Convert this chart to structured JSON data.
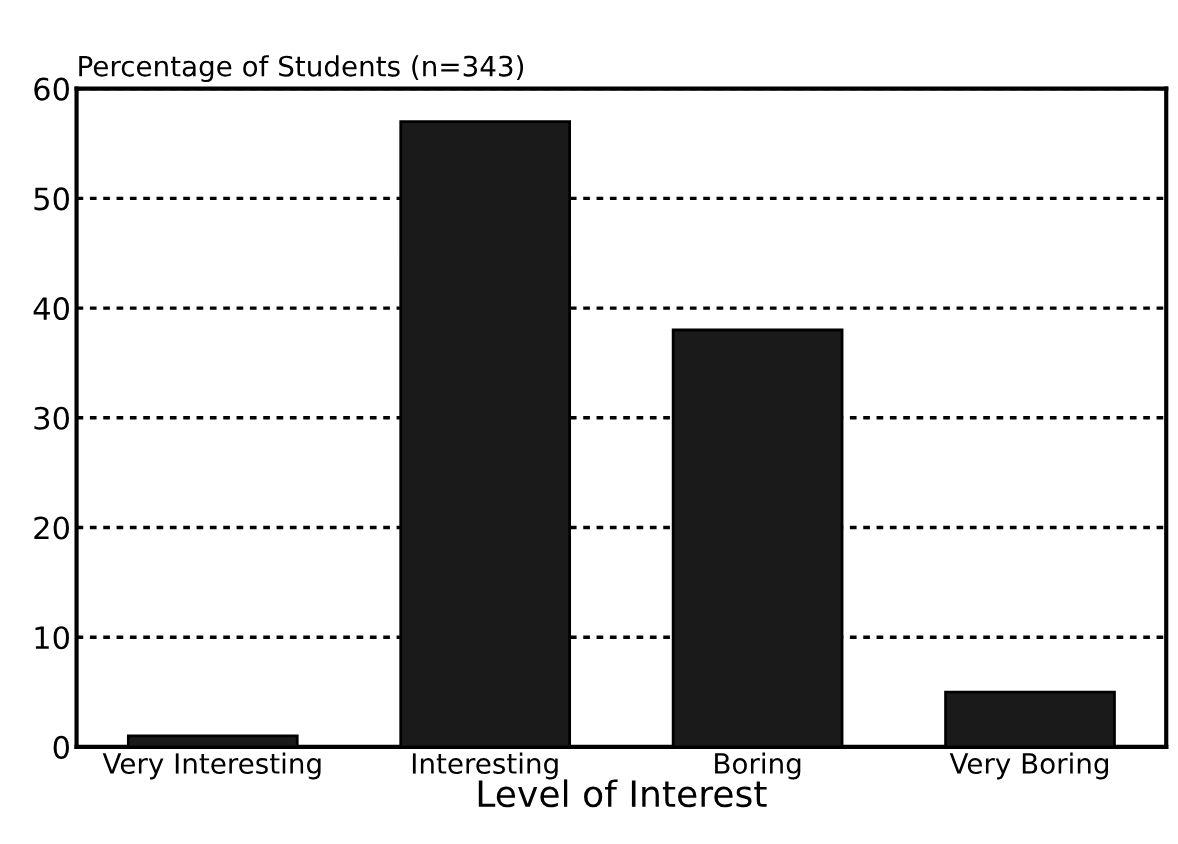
{
  "chart_data": {
    "type": "bar",
    "ylabel": "Percentage of Students (n=343)",
    "xlabel": "Level of Interest",
    "categories": [
      "Very Interesting",
      "Interesting",
      "Boring",
      "Very Boring"
    ],
    "values": [
      1,
      57,
      38,
      5
    ],
    "color": "#1a1a1a",
    "ylim": [
      0,
      60
    ],
    "yticks": [
      0,
      10,
      20,
      30,
      40,
      50,
      60
    ],
    "grid": "y",
    "legend": false
  }
}
